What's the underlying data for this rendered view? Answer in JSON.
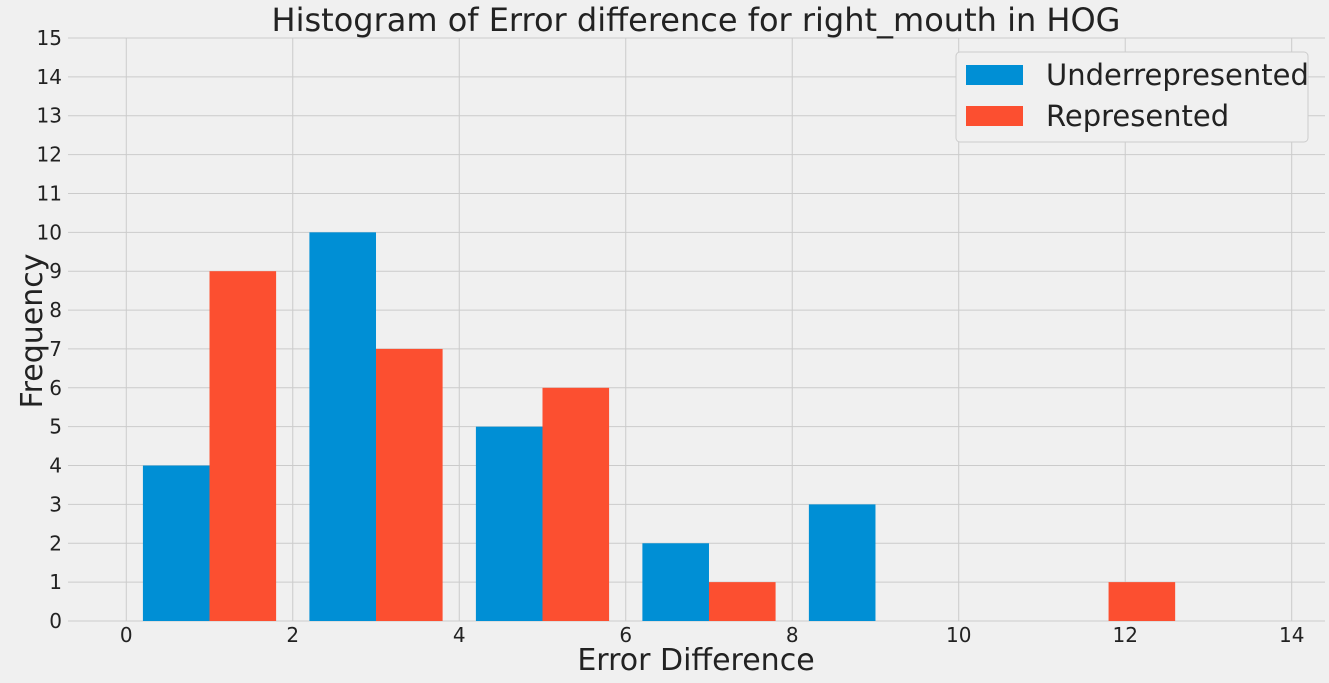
{
  "chart_data": {
    "type": "bar",
    "title": "Histogram of Error difference for right_mouth in HOG",
    "xlabel": "Error Difference",
    "ylabel": "Frequency",
    "xlim": [
      -0.7,
      14.4
    ],
    "ylim": [
      0,
      15
    ],
    "xticks": [
      0,
      2,
      4,
      6,
      8,
      10,
      12,
      14
    ],
    "yticks": [
      0,
      1,
      2,
      3,
      4,
      5,
      6,
      7,
      8,
      9,
      10,
      11,
      12,
      13,
      14,
      15
    ],
    "grid": true,
    "legend_position": "top-right",
    "bins": [
      [
        0.2,
        1.8
      ],
      [
        2.2,
        3.8
      ],
      [
        4.2,
        5.8
      ],
      [
        6.2,
        7.8
      ],
      [
        8.2,
        9.8
      ],
      [
        11.0,
        12.6
      ]
    ],
    "series": [
      {
        "name": "Underrepresented",
        "color": "#008fd5",
        "values": [
          4,
          10,
          5,
          2,
          3,
          0
        ]
      },
      {
        "name": "Represented",
        "color": "#fc4f30",
        "values": [
          9,
          7,
          6,
          1,
          0,
          1
        ]
      }
    ],
    "colors": {
      "background": "#f0f0f0",
      "grid": "#cbcbcb",
      "text": "#222222"
    }
  }
}
